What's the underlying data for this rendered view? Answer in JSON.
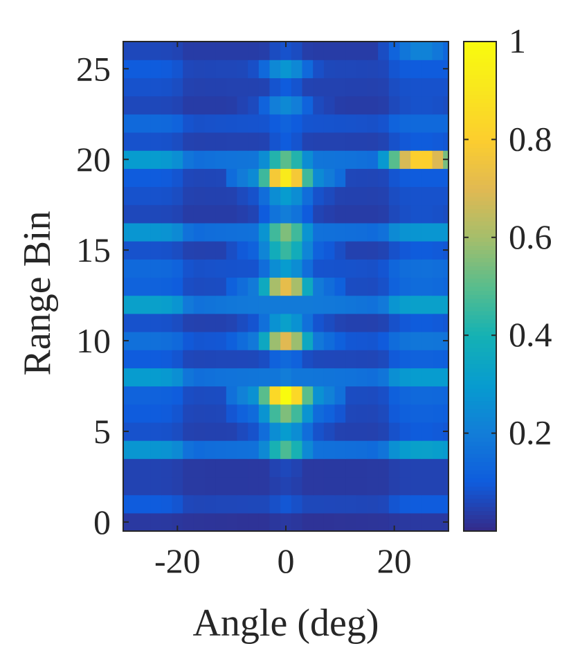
{
  "chart_data": {
    "type": "heatmap",
    "title": "",
    "xlabel": "Angle (deg)",
    "ylabel": "Range Bin",
    "xlim": [
      -30,
      30
    ],
    "ylim": [
      -0.5,
      26.5
    ],
    "x_ticks": [
      -20,
      0,
      20
    ],
    "x_tick_labels": [
      "-20",
      "0",
      "20"
    ],
    "y_ticks": [
      0,
      5,
      10,
      15,
      20,
      25
    ],
    "y_tick_labels": [
      "0",
      "5",
      "10",
      "15",
      "20",
      "25"
    ],
    "colorbar": {
      "colormap": "parula",
      "range": [
        0,
        1
      ],
      "ticks": [
        0.2,
        0.4,
        0.6,
        0.8,
        1
      ],
      "tick_labels": [
        "0.2",
        "0.4",
        "0.6",
        "0.8",
        "1"
      ]
    },
    "x": [
      -30,
      -28,
      -26,
      -24,
      -22,
      -20,
      -18,
      -16,
      -14,
      -12,
      -10,
      -8,
      -6,
      -4,
      -2,
      0,
      2,
      4,
      6,
      8,
      10,
      12,
      14,
      16,
      18,
      20,
      22,
      24,
      26,
      28,
      30
    ],
    "rows": [
      {
        "range_bin": 0,
        "center": 0.03,
        "side": 0.03,
        "right_peak": 0.03
      },
      {
        "range_bin": 1,
        "center": 0.09,
        "side": 0.1,
        "right_peak": 0.08
      },
      {
        "range_bin": 2,
        "center": 0.05,
        "side": 0.05,
        "right_peak": 0.05
      },
      {
        "range_bin": 3,
        "center": 0.06,
        "side": 0.05,
        "right_peak": 0.04
      },
      {
        "range_bin": 4,
        "center": 0.48,
        "side": 0.28,
        "right_peak": 0.32
      },
      {
        "range_bin": 5,
        "center": 0.3,
        "side": 0.08,
        "right_peak": 0.1
      },
      {
        "range_bin": 6,
        "center": 0.55,
        "side": 0.1,
        "right_peak": 0.12
      },
      {
        "range_bin": 7,
        "center": 1.0,
        "side": 0.12,
        "right_peak": 0.14
      },
      {
        "range_bin": 8,
        "center": 0.2,
        "side": 0.3,
        "right_peak": 0.3
      },
      {
        "range_bin": 9,
        "center": 0.14,
        "side": 0.1,
        "right_peak": 0.12
      },
      {
        "range_bin": 10,
        "center": 0.7,
        "side": 0.16,
        "right_peak": 0.18
      },
      {
        "range_bin": 11,
        "center": 0.32,
        "side": 0.08,
        "right_peak": 0.1
      },
      {
        "range_bin": 12,
        "center": 0.18,
        "side": 0.32,
        "right_peak": 0.32
      },
      {
        "range_bin": 13,
        "center": 0.72,
        "side": 0.12,
        "right_peak": 0.15
      },
      {
        "range_bin": 14,
        "center": 0.3,
        "side": 0.14,
        "right_peak": 0.16
      },
      {
        "range_bin": 15,
        "center": 0.45,
        "side": 0.08,
        "right_peak": 0.1
      },
      {
        "range_bin": 16,
        "center": 0.55,
        "side": 0.28,
        "right_peak": 0.28
      },
      {
        "range_bin": 17,
        "center": 0.2,
        "side": 0.06,
        "right_peak": 0.08
      },
      {
        "range_bin": 18,
        "center": 0.3,
        "side": 0.08,
        "right_peak": 0.08
      },
      {
        "range_bin": 19,
        "center": 0.92,
        "side": 0.1,
        "right_peak": 0.08
      },
      {
        "range_bin": 20,
        "center": 0.5,
        "side": 0.3,
        "right_peak": 0.82
      },
      {
        "range_bin": 21,
        "center": 0.1,
        "side": 0.08,
        "right_peak": 0.1
      },
      {
        "range_bin": 22,
        "center": 0.12,
        "side": 0.14,
        "right_peak": 0.14
      },
      {
        "range_bin": 23,
        "center": 0.24,
        "side": 0.06,
        "right_peak": 0.08
      },
      {
        "range_bin": 24,
        "center": 0.1,
        "side": 0.08,
        "right_peak": 0.08
      },
      {
        "range_bin": 25,
        "center": 0.28,
        "side": 0.1,
        "right_peak": 0.1
      },
      {
        "range_bin": 26,
        "center": 0.08,
        "side": 0.06,
        "right_peak": 0.22
      }
    ]
  }
}
